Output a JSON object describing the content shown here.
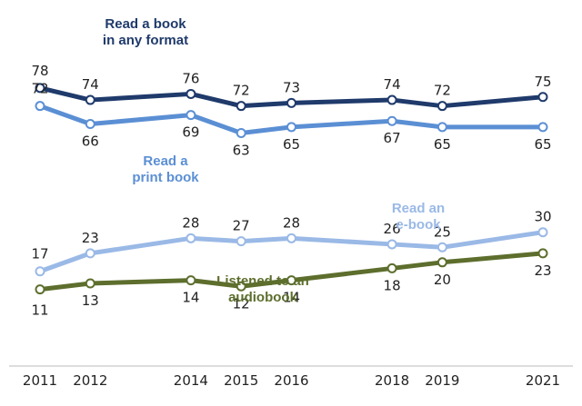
{
  "chart_data": {
    "type": "line",
    "x": [
      2011,
      2012,
      2014,
      2015,
      2016,
      2018,
      2019,
      2021
    ],
    "series": [
      {
        "key": "any",
        "label_lines": [
          "Read a book",
          "in any format"
        ],
        "color": "#1f3a6b",
        "values": [
          78,
          74,
          76,
          72,
          73,
          74,
          72,
          75
        ]
      },
      {
        "key": "print",
        "label_lines": [
          "Read a",
          "print book"
        ],
        "color": "#5b8fd4",
        "values": [
          72,
          66,
          69,
          63,
          65,
          67,
          65,
          65
        ]
      },
      {
        "key": "ebook",
        "label_lines": [
          "Read an",
          "e-book"
        ],
        "color": "#9ab9e6",
        "values": [
          17,
          23,
          28,
          27,
          28,
          26,
          25,
          30
        ]
      },
      {
        "key": "audio",
        "label_lines": [
          "Listened to an",
          "audiobook"
        ],
        "color": "#5d6e2d",
        "values": [
          11,
          13,
          14,
          12,
          14,
          18,
          20,
          23
        ]
      }
    ],
    "grid": false,
    "legend": "inline labels"
  }
}
